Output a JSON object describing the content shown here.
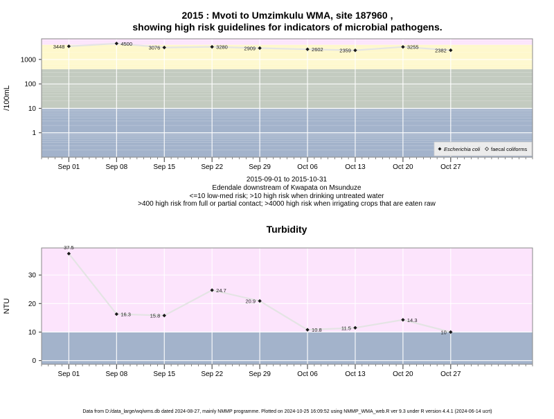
{
  "chart_data": [
    {
      "type": "line",
      "title_line1": "2015 : Mvoti to Umzimkulu WMA, site 187960 ,",
      "title_line2": "showing high risk guidelines for indicators of microbial pathogens.",
      "ylabel": "/100mL",
      "yscale": "log",
      "yticks": [
        1,
        10,
        100,
        1000
      ],
      "ytick_labels": [
        "1",
        "10",
        "100",
        "1000"
      ],
      "ylim": [
        0.1,
        7000
      ],
      "xlim": [
        "2015-08-28",
        "2015-11-08"
      ],
      "xticks": [
        "2015-09-01",
        "2015-09-08",
        "2015-09-15",
        "2015-09-22",
        "2015-09-29",
        "2015-10-06",
        "2015-10-13",
        "2015-10-20",
        "2015-10-27"
      ],
      "xtick_labels": [
        "Sep 01",
        "Sep 08",
        "Sep 15",
        "Sep 22",
        "Sep 29",
        "Oct 06",
        "Oct 13",
        "Oct 20",
        "Oct 27"
      ],
      "bands": [
        {
          "from": 0.1,
          "to": 10,
          "color": "#a3b3cb"
        },
        {
          "from": 10,
          "to": 400,
          "color": "#c3cbc0"
        },
        {
          "from": 400,
          "to": 4000,
          "color": "#fef8cc"
        },
        {
          "from": 4000,
          "to": 7000,
          "color": "#fce4fc"
        }
      ],
      "series": [
        {
          "name": "Escherichia coli",
          "x": [
            "2015-09-01",
            "2015-09-08",
            "2015-09-15",
            "2015-09-22",
            "2015-09-29",
            "2015-10-06",
            "2015-10-13",
            "2015-10-20",
            "2015-10-27"
          ],
          "values": [
            3448,
            4500,
            3076,
            3280,
            2909,
            2602,
            2359,
            3255,
            2382
          ],
          "labels": [
            "3448",
            "4500",
            "3076",
            "3280",
            "2909",
            "2602",
            "2359",
            "3255",
            "2382"
          ]
        }
      ],
      "legend": {
        "position": "bottom-right",
        "entries": [
          "Escherichia coli",
          "faecal coliforms"
        ]
      },
      "subtitle_lines": [
        "2015-09-01 to 2015-10-31",
        "Edendale downstream of Kwapata on Msunduze",
        "<=10 low-med risk; >10 high risk when drinking untreated water",
        ">400 high risk from full or partial contact; >4000 high risk when irrigating crops that are eaten raw"
      ]
    },
    {
      "type": "line",
      "title": "Turbidity",
      "ylabel": "NTU",
      "yticks": [
        0,
        10,
        20,
        30
      ],
      "ytick_labels": [
        "0",
        "10",
        "20",
        "30"
      ],
      "ylim": [
        -1.3,
        39.5
      ],
      "xlim": [
        "2015-08-28",
        "2015-11-08"
      ],
      "xticks": [
        "2015-09-01",
        "2015-09-08",
        "2015-09-15",
        "2015-09-22",
        "2015-09-29",
        "2015-10-06",
        "2015-10-13",
        "2015-10-20",
        "2015-10-27"
      ],
      "xtick_labels": [
        "Sep 01",
        "Sep 08",
        "Sep 15",
        "Sep 22",
        "Sep 29",
        "Oct 06",
        "Oct 13",
        "Oct 20",
        "Oct 27"
      ],
      "bands": [
        {
          "from": -1.3,
          "to": 10,
          "color": "#a3b3cb"
        },
        {
          "from": 10,
          "to": 39.5,
          "color": "#fce4fc"
        }
      ],
      "series": [
        {
          "name": "Turbidity",
          "x": [
            "2015-09-01",
            "2015-09-08",
            "2015-09-15",
            "2015-09-22",
            "2015-09-29",
            "2015-10-06",
            "2015-10-13",
            "2015-10-20",
            "2015-10-27"
          ],
          "values": [
            37.5,
            16.3,
            15.8,
            24.7,
            20.9,
            10.8,
            11.5,
            14.3,
            10
          ],
          "labels": [
            "37.5",
            "16.3",
            "15.8",
            "24.7",
            "20.9",
            "10.8",
            "11.5",
            "14.3",
            "10"
          ]
        }
      ]
    }
  ],
  "footer": "Data from D:/data_large/wq/wms.db dated 2024-08-27, mainly NMMP programme. Plotted on 2024-10-25 16:09:52 using NMMP_WMA_web.R ver 9.3 under R version 4.4.1 (2024-06-14 ucrt)",
  "colors": {
    "line": "#e4e4e4",
    "point": "#1a1a1a",
    "grid": "#ffffff",
    "frame": "#888888"
  }
}
